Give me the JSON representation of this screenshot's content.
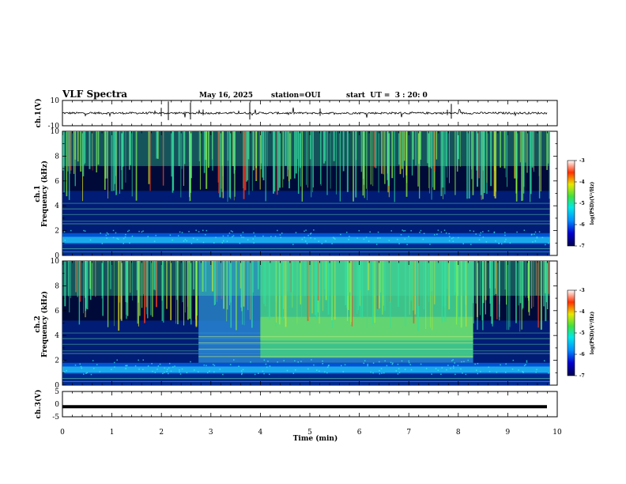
{
  "header": {
    "title": "VLF Spectra",
    "date": "May 16, 2025",
    "station": "station=OUI",
    "start": "start  UT =  3 : 20: 0"
  },
  "chart_data": [
    {
      "type": "line",
      "ylabel": "ch.1(V)",
      "ylim": [
        -10,
        10
      ],
      "yticks": [
        "10",
        "-10"
      ],
      "xlim": [
        0,
        10
      ],
      "series": [
        {
          "note": "noisy waveform centered near 0 V, amplitude about ±1 V with occasional spikes"
        }
      ]
    },
    {
      "type": "heatmap",
      "ylabel": "ch.1\nFrequency (kHz)",
      "ylim": [
        0,
        10
      ],
      "yticks": [
        "0",
        "2",
        "4",
        "6",
        "8",
        "10"
      ],
      "xlim": [
        0,
        10
      ],
      "data_end_min": 9.85,
      "colorbar": {
        "label": "log(PSD)(V²/Hz)",
        "range": [
          -7,
          -3
        ],
        "ticks": [
          "-3",
          "-4",
          "-5",
          "-6",
          "-7"
        ]
      },
      "description": "strong emission below 1.7 kHz, weak band 1.7-5 kHz, impulsive broadband spikes 5-10 kHz across the whole interval"
    },
    {
      "type": "heatmap",
      "ylabel": "ch.2\nFrequency (kHz)",
      "ylim": [
        0,
        10
      ],
      "yticks": [
        "0",
        "2",
        "4",
        "6",
        "8",
        "10"
      ],
      "xlim": [
        0,
        10
      ],
      "data_end_min": 9.85,
      "colorbar": {
        "label": "log(PSD)(V²/Hz)",
        "range": [
          -7,
          -3
        ],
        "ticks": [
          "-3",
          "-4",
          "-5",
          "-6",
          "-7"
        ]
      },
      "enhancement": {
        "start_min": 2.75,
        "end_min": 8.3,
        "note": "broadband enhancement 2-10 kHz, strongest 4-10 kHz from 4.0 to 8.3 min"
      }
    },
    {
      "type": "line",
      "ylabel": "ch.3(V)",
      "ylim": [
        -5,
        5
      ],
      "yticks": [
        "5",
        "0",
        "-5"
      ],
      "xlim": [
        0,
        10
      ],
      "series": [
        {
          "note": "thick constant trace near -1 V"
        }
      ]
    }
  ],
  "xaxis": {
    "label": "Time (min)",
    "ticks": [
      "0",
      "1",
      "2",
      "3",
      "4",
      "5",
      "6",
      "7",
      "8",
      "9",
      "10"
    ]
  }
}
